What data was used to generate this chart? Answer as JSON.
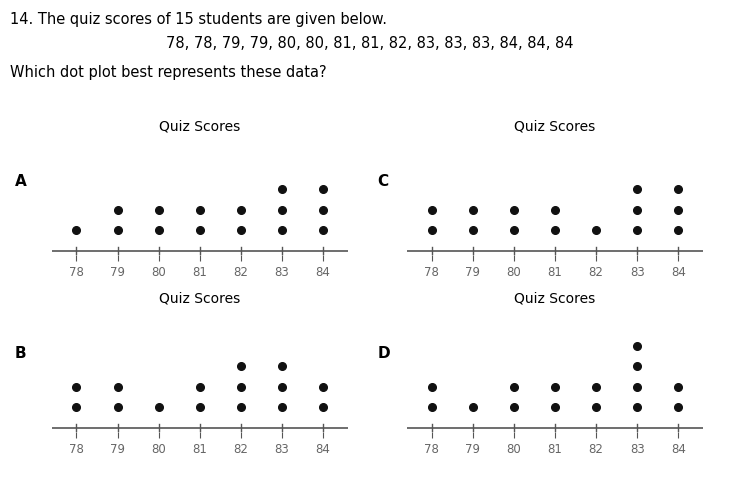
{
  "title": "14. The quiz scores of 15 students are given below.",
  "scores_line": "78, 78, 79, 79, 80, 80, 81, 81, 82, 83, 83, 83, 84, 84, 84",
  "question": "Which dot plot best represents these data?",
  "subplot_title": "Quiz Scores",
  "bg_color": "#ffffff",
  "text_color": "#000000",
  "header_color": "#000000",
  "title_color": "#cc6600",
  "label_color": "#666666",
  "dot_color": "#111111",
  "line_color": "#555555",
  "plots": {
    "A": {
      "counts": {
        "78": 1,
        "79": 2,
        "80": 2,
        "81": 2,
        "82": 2,
        "83": 3,
        "84": 3
      }
    },
    "B": {
      "counts": {
        "78": 2,
        "79": 2,
        "80": 1,
        "81": 2,
        "82": 3,
        "83": 3,
        "84": 2
      }
    },
    "C": {
      "counts": {
        "78": 2,
        "79": 2,
        "80": 2,
        "81": 2,
        "82": 1,
        "83": 3,
        "84": 3
      }
    },
    "D": {
      "counts": {
        "78": 2,
        "79": 1,
        "80": 2,
        "81": 2,
        "82": 2,
        "83": 4,
        "84": 2
      }
    }
  },
  "x_values": [
    78,
    79,
    80,
    81,
    82,
    83,
    84
  ]
}
